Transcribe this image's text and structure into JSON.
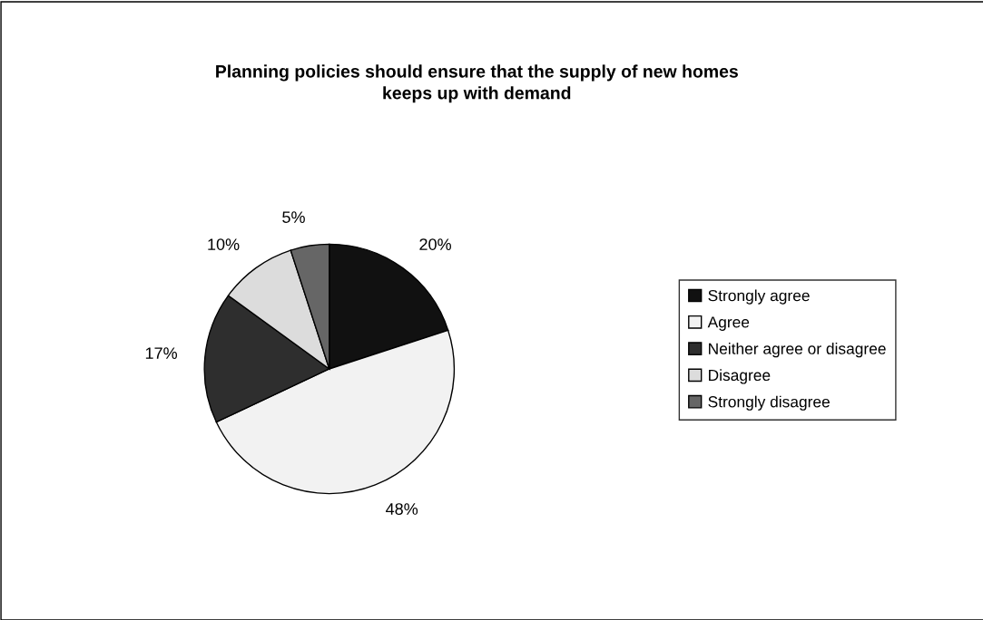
{
  "chart_data": {
    "type": "pie",
    "title": "Planning policies should ensure that the supply of new homes\nkeeps up with demand",
    "categories": [
      "Strongly agree",
      "Agree",
      "Neither agree or disagree",
      "Disagree",
      "Strongly disagree"
    ],
    "values": [
      20,
      48,
      17,
      10,
      5
    ],
    "value_labels": [
      "20%",
      "48%",
      "17%",
      "10%",
      "5%"
    ],
    "colors": [
      "#111111",
      "#f2f2f2",
      "#2e2e2e",
      "#dcdcdc",
      "#666666"
    ],
    "legend": "right"
  }
}
